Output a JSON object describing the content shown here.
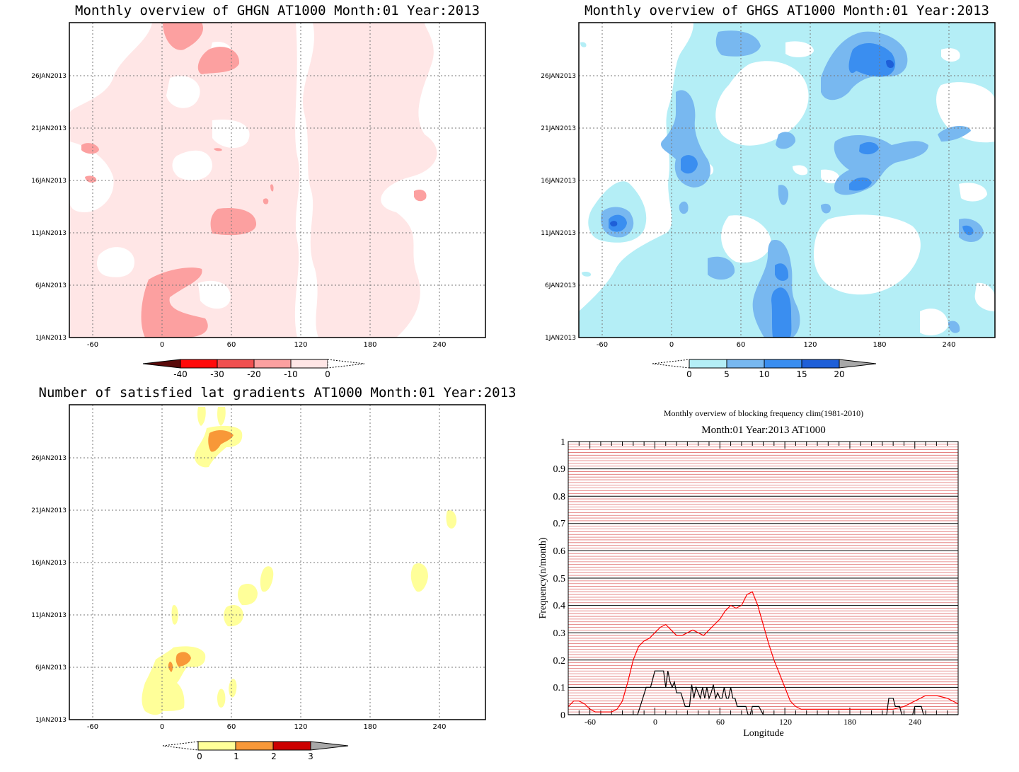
{
  "chart_data": [
    {
      "type": "heatmap",
      "title": "Monthly overview of GHGN AT1000 Month:01 Year:2013",
      "x_ticks": [
        "-60",
        "0",
        "60",
        "120",
        "180",
        "240"
      ],
      "y_ticks": [
        "1JAN2013",
        "6JAN2013",
        "11JAN2013",
        "16JAN2013",
        "21JAN2013",
        "26JAN2013"
      ],
      "xlim": [
        -80,
        280
      ],
      "ylim": [
        1,
        31
      ],
      "colorbar": {
        "labels": [
          "-40",
          "-30",
          "-20",
          "-10",
          "0"
        ],
        "colors": [
          "#5a0a0a",
          "#ff0a0a",
          "#f05050",
          "#fca0a0",
          "#ffe6e6"
        ]
      }
    },
    {
      "type": "heatmap",
      "title": "Monthly overview of GHGS AT1000 Month:01 Year:2013",
      "x_ticks": [
        "-60",
        "0",
        "60",
        "120",
        "180",
        "240"
      ],
      "y_ticks": [
        "1JAN2013",
        "6JAN2013",
        "11JAN2013",
        "16JAN2013",
        "21JAN2013",
        "26JAN2013"
      ],
      "xlim": [
        -80,
        280
      ],
      "ylim": [
        1,
        31
      ],
      "colorbar": {
        "labels": [
          "0",
          "5",
          "10",
          "15",
          "20"
        ],
        "colors": [
          "#b4eef6",
          "#78b8f0",
          "#3a8ef0",
          "#1e5fd8",
          "#a8a8a8"
        ]
      }
    },
    {
      "type": "heatmap",
      "title": "Number of satisfied lat gradients AT1000 Month:01 Year:2013",
      "x_ticks": [
        "-60",
        "0",
        "60",
        "120",
        "180",
        "240"
      ],
      "y_ticks": [
        "1JAN2013",
        "6JAN2013",
        "11JAN2013",
        "16JAN2013",
        "21JAN2013",
        "26JAN2013"
      ],
      "xlim": [
        -80,
        280
      ],
      "ylim": [
        1,
        31
      ],
      "colorbar": {
        "labels": [
          "0",
          "1",
          "2",
          "3"
        ],
        "colors": [
          "#ffff99",
          "#f89838",
          "#cc0000",
          "#a8a8a8"
        ]
      }
    },
    {
      "type": "line",
      "title": "Monthly overview of blocking frequency clim(1981-2010)",
      "subtitle": "Month:01 Year:2013  AT1000",
      "xlabel": "Longitude",
      "ylabel": "Frequency(n/month)",
      "xlim": [
        -80,
        280
      ],
      "ylim": [
        0,
        1
      ],
      "x_ticks": [
        "-60",
        "0",
        "60",
        "120",
        "180",
        "240"
      ],
      "y_ticks": [
        "0",
        "0.1",
        "0.2",
        "0.3",
        "0.4",
        "0.5",
        "0.6",
        "0.7",
        "0.8",
        "0.9",
        "1"
      ],
      "series": [
        {
          "color": "#ff0000",
          "x": [
            -80,
            -75,
            -70,
            -65,
            -60,
            -55,
            -50,
            -45,
            -40,
            -35,
            -30,
            -25,
            -20,
            -15,
            -10,
            -5,
            0,
            5,
            10,
            15,
            20,
            25,
            30,
            35,
            40,
            45,
            50,
            55,
            60,
            65,
            70,
            75,
            80,
            85,
            90,
            95,
            100,
            105,
            110,
            115,
            120,
            125,
            130,
            135,
            140,
            150,
            160,
            170,
            180,
            190,
            200,
            210,
            220,
            230,
            240,
            250,
            260,
            270,
            280
          ],
          "y": [
            0.03,
            0.05,
            0.05,
            0.04,
            0.02,
            0.01,
            0.01,
            0.01,
            0.01,
            0.02,
            0.05,
            0.12,
            0.2,
            0.25,
            0.27,
            0.28,
            0.3,
            0.32,
            0.33,
            0.31,
            0.29,
            0.29,
            0.3,
            0.31,
            0.3,
            0.29,
            0.31,
            0.33,
            0.35,
            0.38,
            0.4,
            0.39,
            0.4,
            0.44,
            0.45,
            0.4,
            0.33,
            0.26,
            0.2,
            0.15,
            0.1,
            0.05,
            0.03,
            0.02,
            0.02,
            0.02,
            0.02,
            0.02,
            0.02,
            0.02,
            0.02,
            0.02,
            0.02,
            0.03,
            0.05,
            0.07,
            0.07,
            0.06,
            0.04
          ]
        },
        {
          "color": "#000000",
          "x": [
            -80,
            -20,
            -16,
            -12,
            -8,
            -4,
            0,
            4,
            8,
            10,
            12,
            14,
            16,
            18,
            20,
            24,
            28,
            30,
            32,
            34,
            36,
            38,
            40,
            42,
            44,
            46,
            48,
            50,
            52,
            54,
            56,
            58,
            60,
            62,
            64,
            66,
            68,
            70,
            72,
            74,
            76,
            80,
            84,
            86,
            88,
            90,
            92,
            94,
            96,
            100,
            210,
            212,
            214,
            216,
            218,
            220,
            222,
            224,
            226,
            228,
            230,
            232,
            234,
            236,
            238,
            240,
            242,
            244,
            246,
            248,
            250,
            280
          ],
          "y": [
            0,
            0,
            0,
            0.05,
            0.1,
            0.1,
            0.16,
            0.16,
            0.16,
            0.1,
            0.16,
            0.12,
            0.1,
            0.12,
            0.08,
            0.08,
            0.03,
            0.03,
            0.03,
            0.11,
            0.06,
            0.1,
            0.08,
            0.06,
            0.1,
            0.06,
            0.1,
            0.06,
            0.08,
            0.11,
            0.06,
            0.08,
            0.06,
            0.06,
            0.1,
            0.06,
            0.06,
            0.1,
            0.06,
            0.06,
            0.03,
            0.03,
            0.03,
            0,
            0,
            0.03,
            0.03,
            0.03,
            0.03,
            0,
            0,
            0,
            0,
            0.06,
            0.06,
            0.06,
            0.03,
            0.03,
            0.03,
            0,
            0,
            0,
            0,
            0,
            0,
            0.03,
            0.03,
            0.03,
            0.03,
            0,
            0,
            0
          ]
        }
      ]
    }
  ]
}
